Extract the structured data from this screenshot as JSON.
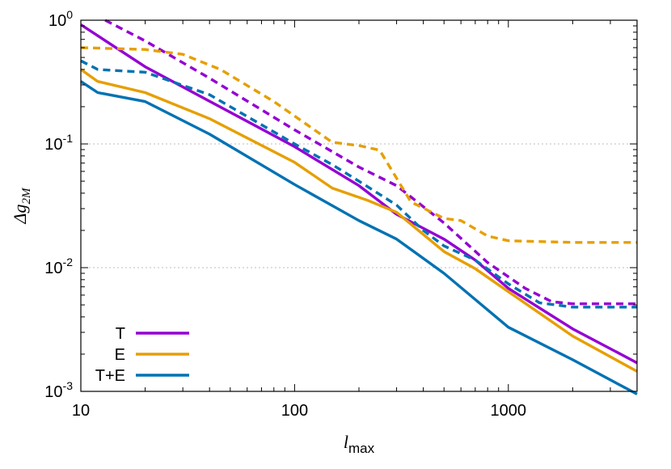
{
  "chart_data": {
    "type": "line",
    "title": "",
    "xlabel": "l",
    "xlabel_sub": "max",
    "ylabel": "Δg",
    "ylabel_sub": "2M",
    "xscale": "log",
    "yscale": "log",
    "xlim": [
      10,
      4000
    ],
    "ylim": [
      0.001,
      1
    ],
    "x_ticks": [
      {
        "value": 10,
        "label": "10"
      },
      {
        "value": 100,
        "label": "100"
      },
      {
        "value": 1000,
        "label": "1000"
      }
    ],
    "y_ticks": [
      {
        "value": 1,
        "base": "10",
        "exp": "0"
      },
      {
        "value": 0.1,
        "base": "10",
        "exp": "-1"
      },
      {
        "value": 0.01,
        "base": "10",
        "exp": "-2"
      },
      {
        "value": 0.001,
        "base": "10",
        "exp": "-3"
      }
    ],
    "grid": "horizontal dotted at 1e-1 and 1e-2",
    "legend": {
      "position": "bottom-left",
      "entries": [
        "T",
        "E",
        "T+E"
      ]
    },
    "colors": {
      "T": "#9400d3",
      "E": "#e69f00",
      "T+E": "#0072b2"
    },
    "series": [
      {
        "name": "T",
        "style": "solid",
        "color": "#9400d3",
        "points": [
          [
            10,
            0.92
          ],
          [
            20,
            0.42
          ],
          [
            50,
            0.18
          ],
          [
            100,
            0.095
          ],
          [
            200,
            0.046
          ],
          [
            300,
            0.027
          ],
          [
            500,
            0.017
          ],
          [
            700,
            0.0115
          ],
          [
            1000,
            0.0068
          ],
          [
            2000,
            0.0032
          ],
          [
            4000,
            0.0017
          ]
        ]
      },
      {
        "name": "E",
        "style": "solid",
        "color": "#e69f00",
        "points": [
          [
            10,
            0.4
          ],
          [
            12,
            0.32
          ],
          [
            20,
            0.26
          ],
          [
            40,
            0.16
          ],
          [
            100,
            0.071
          ],
          [
            150,
            0.044
          ],
          [
            220,
            0.035
          ],
          [
            300,
            0.028
          ],
          [
            500,
            0.0135
          ],
          [
            700,
            0.0098
          ],
          [
            1000,
            0.0064
          ],
          [
            2000,
            0.0028
          ],
          [
            4000,
            0.00145
          ]
        ]
      },
      {
        "name": "T+E",
        "style": "solid",
        "color": "#0072b2",
        "points": [
          [
            10,
            0.32
          ],
          [
            12,
            0.26
          ],
          [
            20,
            0.22
          ],
          [
            40,
            0.12
          ],
          [
            100,
            0.047
          ],
          [
            200,
            0.024
          ],
          [
            300,
            0.017
          ],
          [
            500,
            0.009
          ],
          [
            1000,
            0.0033
          ],
          [
            2000,
            0.0018
          ],
          [
            4000,
            0.00095
          ]
        ]
      },
      {
        "name": "T",
        "style": "dashed",
        "color": "#9400d3",
        "points": [
          [
            13,
            1.0
          ],
          [
            20,
            0.68
          ],
          [
            40,
            0.34
          ],
          [
            100,
            0.13
          ],
          [
            200,
            0.065
          ],
          [
            300,
            0.046
          ],
          [
            500,
            0.023
          ],
          [
            800,
            0.011
          ],
          [
            1200,
            0.0068
          ],
          [
            1600,
            0.0053
          ],
          [
            2000,
            0.0051
          ],
          [
            4000,
            0.0051
          ]
        ]
      },
      {
        "name": "E",
        "style": "dashed",
        "color": "#e69f00",
        "points": [
          [
            10,
            0.6
          ],
          [
            20,
            0.58
          ],
          [
            30,
            0.53
          ],
          [
            45,
            0.4
          ],
          [
            80,
            0.22
          ],
          [
            150,
            0.103
          ],
          [
            200,
            0.097
          ],
          [
            250,
            0.089
          ],
          [
            350,
            0.034
          ],
          [
            500,
            0.025
          ],
          [
            600,
            0.024
          ],
          [
            800,
            0.018
          ],
          [
            1000,
            0.0165
          ],
          [
            2000,
            0.016
          ],
          [
            4000,
            0.016
          ]
        ]
      },
      {
        "name": "T+E",
        "style": "dashed",
        "color": "#0072b2",
        "points": [
          [
            10,
            0.47
          ],
          [
            12,
            0.4
          ],
          [
            20,
            0.38
          ],
          [
            40,
            0.25
          ],
          [
            100,
            0.1
          ],
          [
            150,
            0.068
          ],
          [
            200,
            0.05
          ],
          [
            300,
            0.032
          ],
          [
            400,
            0.02
          ],
          [
            500,
            0.015
          ],
          [
            700,
            0.0115
          ],
          [
            1000,
            0.0074
          ],
          [
            1400,
            0.0052
          ],
          [
            2000,
            0.0048
          ],
          [
            4000,
            0.0048
          ]
        ]
      }
    ]
  }
}
